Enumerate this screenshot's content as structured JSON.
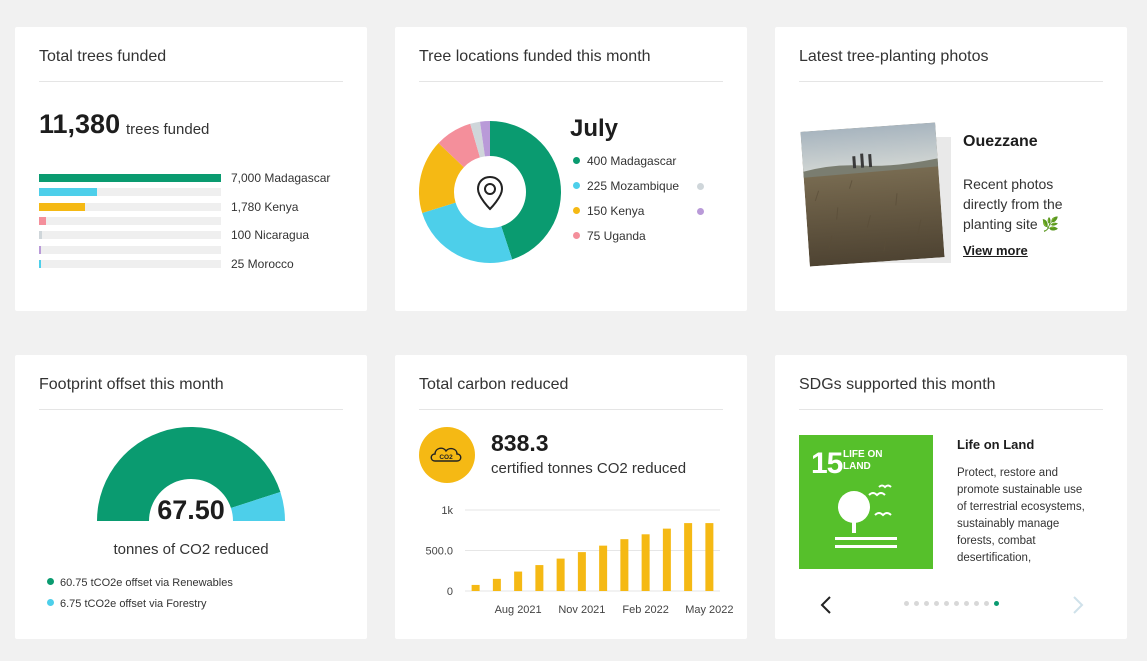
{
  "cards": {
    "trees": {
      "title": "Total trees funded",
      "total": "11,380",
      "unit": "trees funded",
      "items": [
        {
          "label": "7,000  Madagascar",
          "fraction": 1.0,
          "color": "#0a9b70"
        },
        {
          "label": "",
          "fraction": 0.32,
          "color": "#4dcfea"
        },
        {
          "label": "1,780  Kenya",
          "fraction": 0.254,
          "color": "#f5b914"
        },
        {
          "label": "",
          "fraction": 0.04,
          "color": "#f48f9b"
        },
        {
          "label": "100  Nicaragua",
          "fraction": 0.014,
          "color": "#cfd6da"
        },
        {
          "label": "",
          "fraction": 0.006,
          "color": "#b99ad8"
        },
        {
          "label": "25  Morocco",
          "fraction": 0.004,
          "color": "#4dcfea"
        }
      ]
    },
    "locations": {
      "title": "Tree locations funded this month",
      "month": "July",
      "legend": [
        {
          "label": "400  Madagascar",
          "color": "#0a9b70"
        },
        {
          "label": "225  Mozambique",
          "color": "#4dcfea"
        },
        {
          "label": "150  Kenya",
          "color": "#f5b914"
        },
        {
          "label": "75  Uganda",
          "color": "#f48f9b"
        }
      ],
      "legend_overflow_colors": [
        "#cfd6da",
        "#b99ad8"
      ],
      "donut": [
        {
          "value": 400,
          "color": "#0a9b70"
        },
        {
          "value": 225,
          "color": "#4dcfea"
        },
        {
          "value": 150,
          "color": "#f5b914"
        },
        {
          "value": 75,
          "color": "#f48f9b"
        },
        {
          "value": 20,
          "color": "#cfd6da"
        },
        {
          "value": 20,
          "color": "#b99ad8"
        }
      ],
      "center_icon": "location-pin-icon"
    },
    "photos": {
      "title": "Latest tree-planting photos",
      "location": "Ouezzane",
      "description": "Recent photos directly from the planting site",
      "leaf_icon": "🌿",
      "link": "View more"
    },
    "footprint": {
      "title": "Footprint offset this month",
      "value": "67.50",
      "caption": "tonnes of CO2 reduced",
      "gauge_fraction": 0.9,
      "legend": [
        {
          "label": "60.75 tCO2e offset via Renewables",
          "color": "#0a9b70",
          "value": 60.75
        },
        {
          "label": "6.75 tCO2e offset via Forestry",
          "color": "#4dcfea",
          "value": 6.75
        }
      ]
    },
    "carbon": {
      "title": "Total carbon reduced",
      "icon_label": "CO2",
      "value": "838.3",
      "caption": "certified tonnes CO2 reduced",
      "bar_color": "#f5b914"
    },
    "sdgs": {
      "title": "SDGs supported this month",
      "tile_number": "15",
      "tile_title": "LIFE ON LAND",
      "name": "Life on Land",
      "description": "Protect, restore and promote sustainable use of terrestrial ecosystems, sustainably manage forests, combat desertification,",
      "dots_total": 10,
      "dots_active": 9
    }
  },
  "chart_data": {
    "type": "bar",
    "categories": [
      "",
      "",
      "Aug 2021",
      "",
      "",
      "Nov 2021",
      "",
      "",
      "Feb 2022",
      "",
      "",
      "May 2022"
    ],
    "values": [
      75,
      150,
      240,
      320,
      400,
      480,
      560,
      640,
      700,
      770,
      838.3,
      838.3
    ],
    "yticks": [
      "0",
      "500.0",
      "1k"
    ],
    "ylim": [
      0,
      1000
    ],
    "color": "#f5b914"
  }
}
